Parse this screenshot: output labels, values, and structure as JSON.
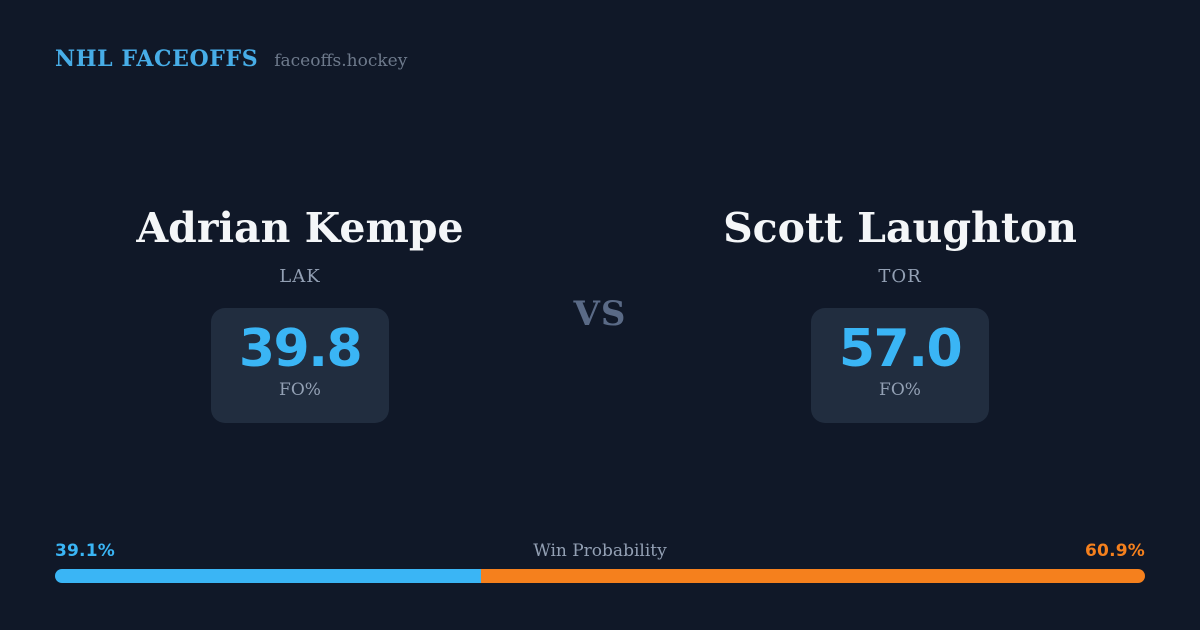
{
  "header": {
    "brand": "NHL FACEOFFS",
    "site": "faceoffs.hockey"
  },
  "vs_label": "VS",
  "players": {
    "left": {
      "name": "Adrian Kempe",
      "team": "LAK",
      "stat_value": "39.8",
      "stat_label": "FO%"
    },
    "right": {
      "name": "Scott Laughton",
      "team": "TOR",
      "stat_value": "57.0",
      "stat_label": "FO%"
    }
  },
  "win_probability": {
    "title": "Win Probability",
    "left_pct_label": "39.1%",
    "right_pct_label": "60.9%",
    "left_value": 39.1,
    "right_value": 60.9
  },
  "colors": {
    "bg": "#101828",
    "box-bg": "#212d3f",
    "brand-blue": "#47ade7",
    "accent-blue": "#3ab5f5",
    "accent-orange": "#f5801d",
    "label-gray": "#93a0b4",
    "muted-gray": "#6e7a8c",
    "vs-gray": "#5a6a86"
  }
}
